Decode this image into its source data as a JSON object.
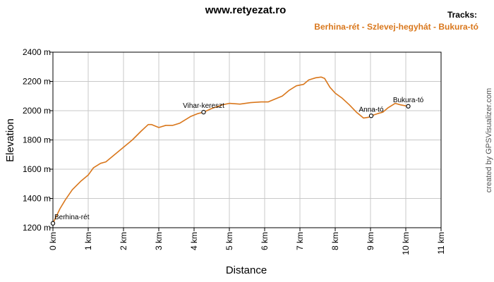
{
  "header": {
    "site": "www.retyezat.ro",
    "tracks_label": "Tracks:",
    "track_name": "Berhina-rét - Szlevej-hegyhát - Bukura-tó"
  },
  "credit": "created by GPSVisualizer.com",
  "colors": {
    "track": "#d9771c",
    "grid": "#c8c8c8",
    "axis": "#000000"
  },
  "chart_data": {
    "type": "line",
    "title": "",
    "xlabel": "Distance",
    "ylabel": "Elevation",
    "xlim": [
      0,
      11
    ],
    "ylim": [
      1200,
      2400
    ],
    "x_unit": "km",
    "y_unit": "m",
    "x_ticks": [
      "0 km",
      "1 km",
      "2 km",
      "3 km",
      "4 km",
      "5 km",
      "6 km",
      "7 km",
      "8 km",
      "9 km",
      "10 km",
      "11 km"
    ],
    "y_ticks": [
      "1200 m",
      "1400 m",
      "1600 m",
      "1800 m",
      "2000 m",
      "2200 m",
      "2400 m"
    ],
    "grid": true,
    "series": [
      {
        "points": [
          [
            0,
            1230
          ],
          [
            0.1,
            1280
          ],
          [
            0.2,
            1330
          ],
          [
            0.35,
            1390
          ],
          [
            0.55,
            1460
          ],
          [
            0.8,
            1520
          ],
          [
            1.0,
            1560
          ],
          [
            1.15,
            1610
          ],
          [
            1.35,
            1640
          ],
          [
            1.5,
            1650
          ],
          [
            1.75,
            1700
          ],
          [
            2.0,
            1750
          ],
          [
            2.25,
            1800
          ],
          [
            2.5,
            1860
          ],
          [
            2.7,
            1905
          ],
          [
            2.8,
            1905
          ],
          [
            3.0,
            1885
          ],
          [
            3.2,
            1900
          ],
          [
            3.4,
            1900
          ],
          [
            3.6,
            1915
          ],
          [
            3.9,
            1960
          ],
          [
            4.1,
            1980
          ],
          [
            4.27,
            1990
          ],
          [
            4.5,
            2015
          ],
          [
            4.8,
            2040
          ],
          [
            5.0,
            2050
          ],
          [
            5.3,
            2045
          ],
          [
            5.6,
            2055
          ],
          [
            5.9,
            2060
          ],
          [
            6.1,
            2060
          ],
          [
            6.3,
            2080
          ],
          [
            6.5,
            2100
          ],
          [
            6.7,
            2140
          ],
          [
            6.9,
            2170
          ],
          [
            7.1,
            2180
          ],
          [
            7.25,
            2210
          ],
          [
            7.45,
            2225
          ],
          [
            7.6,
            2230
          ],
          [
            7.7,
            2220
          ],
          [
            7.85,
            2160
          ],
          [
            8.0,
            2120
          ],
          [
            8.2,
            2085
          ],
          [
            8.4,
            2040
          ],
          [
            8.6,
            1990
          ],
          [
            8.8,
            1950
          ],
          [
            8.95,
            1955
          ],
          [
            9.02,
            1965
          ],
          [
            9.2,
            1980
          ],
          [
            9.35,
            1990
          ],
          [
            9.5,
            2020
          ],
          [
            9.7,
            2050
          ],
          [
            9.85,
            2040
          ],
          [
            10.07,
            2030
          ]
        ]
      }
    ],
    "waypoints": [
      {
        "name": "Berhina-rét",
        "x": 0,
        "y": 1230
      },
      {
        "name": "Vihar-kereszt",
        "x": 4.27,
        "y": 1990
      },
      {
        "name": "Anna-tó",
        "x": 9.02,
        "y": 1965
      },
      {
        "name": "Bukura-tó",
        "x": 10.07,
        "y": 2030
      }
    ]
  }
}
